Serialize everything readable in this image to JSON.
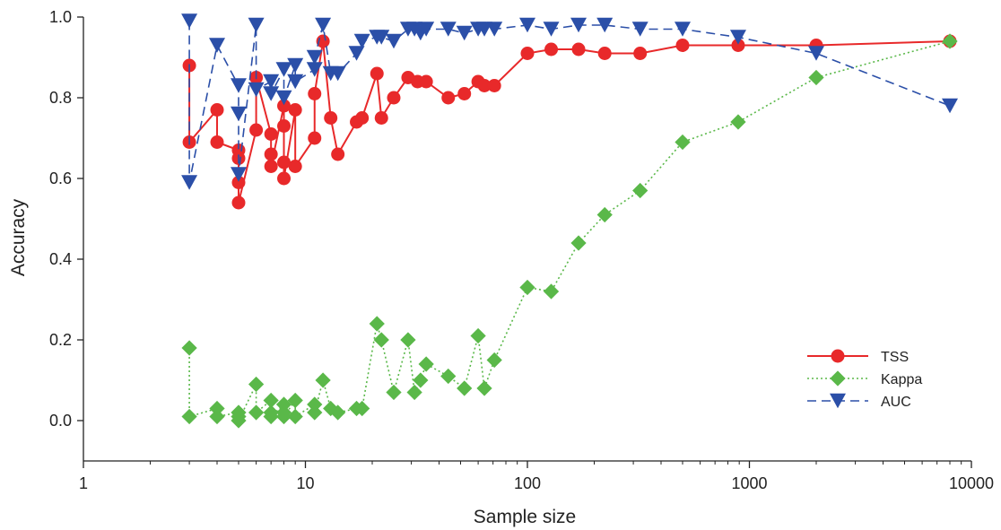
{
  "chart_data": {
    "type": "scatter",
    "title": "",
    "xlabel": "Sample size",
    "ylabel": "Accuracy",
    "x_scale": "log",
    "xlim": [
      1,
      10000
    ],
    "ylim": [
      -0.1,
      1.0
    ],
    "x_ticks": [
      1,
      10,
      100,
      1000,
      10000
    ],
    "x_tick_labels": [
      "1",
      "10",
      "100",
      "1000",
      "10000"
    ],
    "y_ticks": [
      0.0,
      0.2,
      0.4,
      0.6,
      0.8,
      1.0
    ],
    "y_tick_labels": [
      "0.0",
      "0.2",
      "0.4",
      "0.6",
      "0.8",
      "1.0"
    ],
    "grid": false,
    "legend_position": "bottom-right",
    "series": [
      {
        "name": "TSS",
        "color": "#e8292a",
        "marker": "circle",
        "line_style": "solid",
        "points": [
          [
            3,
            0.88
          ],
          [
            3,
            0.69
          ],
          [
            4,
            0.77
          ],
          [
            4,
            0.69
          ],
          [
            5,
            0.67
          ],
          [
            5,
            0.65
          ],
          [
            5,
            0.59
          ],
          [
            5,
            0.54
          ],
          [
            6,
            0.72
          ],
          [
            6,
            0.85
          ],
          [
            7,
            0.71
          ],
          [
            7,
            0.66
          ],
          [
            7,
            0.63
          ],
          [
            8,
            0.78
          ],
          [
            8,
            0.73
          ],
          [
            8,
            0.64
          ],
          [
            8,
            0.6
          ],
          [
            9,
            0.77
          ],
          [
            9,
            0.63
          ],
          [
            11,
            0.7
          ],
          [
            11,
            0.81
          ],
          [
            12,
            0.94
          ],
          [
            13,
            0.75
          ],
          [
            14,
            0.66
          ],
          [
            17,
            0.74
          ],
          [
            18,
            0.75
          ],
          [
            21,
            0.86
          ],
          [
            22,
            0.75
          ],
          [
            25,
            0.8
          ],
          [
            29,
            0.85
          ],
          [
            32,
            0.84
          ],
          [
            35,
            0.84
          ],
          [
            44,
            0.8
          ],
          [
            52,
            0.81
          ],
          [
            60,
            0.84
          ],
          [
            64,
            0.83
          ],
          [
            71,
            0.83
          ],
          [
            100,
            0.91
          ],
          [
            128,
            0.92
          ],
          [
            170,
            0.92
          ],
          [
            223,
            0.91
          ],
          [
            322,
            0.91
          ],
          [
            500,
            0.93
          ],
          [
            890,
            0.93
          ],
          [
            2000,
            0.93
          ],
          [
            8000,
            0.94
          ]
        ]
      },
      {
        "name": "Kappa",
        "color": "#5ab849",
        "marker": "diamond",
        "line_style": "dotted",
        "points": [
          [
            3,
            0.18
          ],
          [
            3,
            0.01
          ],
          [
            4,
            0.03
          ],
          [
            4,
            0.01
          ],
          [
            5,
            0.02
          ],
          [
            5,
            0.01
          ],
          [
            5,
            0.0
          ],
          [
            6,
            0.09
          ],
          [
            6,
            0.02
          ],
          [
            7,
            0.05
          ],
          [
            7,
            0.02
          ],
          [
            7,
            0.01
          ],
          [
            8,
            0.04
          ],
          [
            8,
            0.02
          ],
          [
            8,
            0.01
          ],
          [
            9,
            0.05
          ],
          [
            9,
            0.01
          ],
          [
            11,
            0.04
          ],
          [
            11,
            0.02
          ],
          [
            12,
            0.1
          ],
          [
            13,
            0.03
          ],
          [
            14,
            0.02
          ],
          [
            17,
            0.03
          ],
          [
            18,
            0.03
          ],
          [
            21,
            0.24
          ],
          [
            22,
            0.2
          ],
          [
            25,
            0.07
          ],
          [
            29,
            0.2
          ],
          [
            31,
            0.07
          ],
          [
            33,
            0.1
          ],
          [
            35,
            0.14
          ],
          [
            44,
            0.11
          ],
          [
            52,
            0.08
          ],
          [
            60,
            0.21
          ],
          [
            64,
            0.08
          ],
          [
            71,
            0.15
          ],
          [
            100,
            0.33
          ],
          [
            128,
            0.32
          ],
          [
            170,
            0.44
          ],
          [
            223,
            0.51
          ],
          [
            322,
            0.57
          ],
          [
            500,
            0.69
          ],
          [
            890,
            0.74
          ],
          [
            2000,
            0.85
          ],
          [
            8000,
            0.94
          ]
        ]
      },
      {
        "name": "AUC",
        "color": "#2b4fa8",
        "marker": "triangle-down",
        "line_style": "dashed",
        "points": [
          [
            3,
            0.99
          ],
          [
            3,
            0.59
          ],
          [
            4,
            0.93
          ],
          [
            5,
            0.83
          ],
          [
            5,
            0.76
          ],
          [
            5,
            0.61
          ],
          [
            6,
            0.98
          ],
          [
            6,
            0.82
          ],
          [
            7,
            0.84
          ],
          [
            7,
            0.81
          ],
          [
            8,
            0.87
          ],
          [
            8,
            0.8
          ],
          [
            9,
            0.88
          ],
          [
            9,
            0.84
          ],
          [
            11,
            0.87
          ],
          [
            11,
            0.9
          ],
          [
            12,
            0.98
          ],
          [
            13,
            0.86
          ],
          [
            14,
            0.86
          ],
          [
            17,
            0.91
          ],
          [
            18,
            0.94
          ],
          [
            21,
            0.95
          ],
          [
            22,
            0.95
          ],
          [
            25,
            0.94
          ],
          [
            29,
            0.97
          ],
          [
            31,
            0.97
          ],
          [
            33,
            0.96
          ],
          [
            35,
            0.97
          ],
          [
            44,
            0.97
          ],
          [
            52,
            0.96
          ],
          [
            60,
            0.97
          ],
          [
            64,
            0.97
          ],
          [
            71,
            0.97
          ],
          [
            100,
            0.98
          ],
          [
            128,
            0.97
          ],
          [
            170,
            0.98
          ],
          [
            223,
            0.98
          ],
          [
            322,
            0.97
          ],
          [
            500,
            0.97
          ],
          [
            890,
            0.95
          ],
          [
            2000,
            0.91
          ],
          [
            8000,
            0.78
          ]
        ]
      }
    ]
  }
}
